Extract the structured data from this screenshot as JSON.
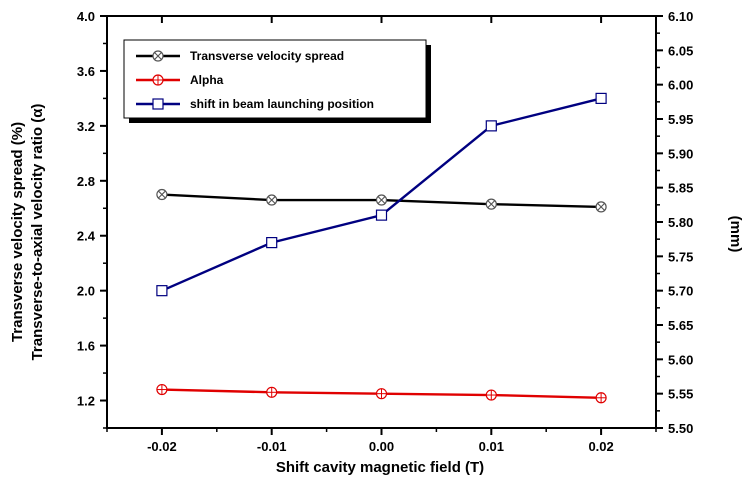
{
  "chart_data": {
    "type": "line",
    "xlabel": "Shift cavity magnetic field  (T)",
    "ylabel_left_line1": "Transverse velocity spread (%)",
    "ylabel_left_line2": "Transverse-to-axial velocity ratio (α)",
    "ylabel_right": "(mm)",
    "x": [
      -0.02,
      -0.01,
      0.0,
      0.01,
      0.02
    ],
    "x_ticks": [
      "-0.02",
      "-0.01",
      "0.00",
      "0.01",
      "0.02"
    ],
    "xlim": [
      -0.025,
      0.025
    ],
    "ylim_left": [
      1.0,
      4.0
    ],
    "y_left_ticks": [
      "1.2",
      "1.6",
      "2.0",
      "2.4",
      "2.8",
      "3.2",
      "3.6",
      "4.0"
    ],
    "ylim_right": [
      5.5,
      6.1
    ],
    "y_right_ticks": [
      "5.50",
      "5.55",
      "5.60",
      "5.65",
      "5.70",
      "5.75",
      "5.80",
      "5.85",
      "5.90",
      "5.95",
      "6.00",
      "6.05",
      "6.10"
    ],
    "grid": false,
    "legend_position": "top-left",
    "series": [
      {
        "name": "Transverse velocity spread",
        "axis": "left",
        "color": "#000000",
        "marker": "crossed-circle",
        "values": [
          2.7,
          2.66,
          2.66,
          2.63,
          2.61
        ]
      },
      {
        "name": "Alpha",
        "axis": "left",
        "color": "#e00000",
        "marker": "circle-plus",
        "values": [
          1.28,
          1.26,
          1.25,
          1.24,
          1.22
        ]
      },
      {
        "name": "shift in beam launching position",
        "axis": "right",
        "color": "#000080",
        "marker": "square",
        "values": [
          5.7,
          5.77,
          5.81,
          5.94,
          5.98
        ]
      }
    ]
  }
}
